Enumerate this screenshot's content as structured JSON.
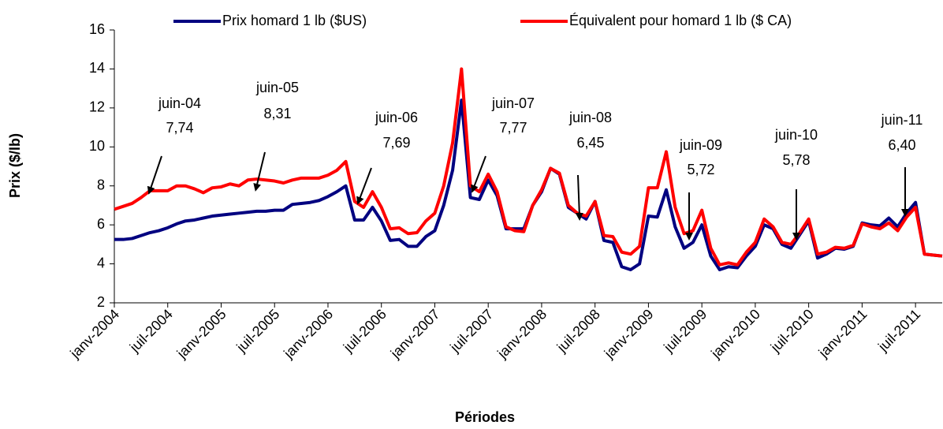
{
  "chart_data": {
    "type": "line",
    "xlabel": "Périodes",
    "ylabel": "Prix ($/lb)",
    "categories": [
      "janv-2004",
      null,
      null,
      null,
      null,
      null,
      "juil-2004",
      null,
      null,
      null,
      null,
      null,
      "janv-2005",
      null,
      null,
      null,
      null,
      null,
      "juil-2005",
      null,
      null,
      null,
      null,
      null,
      "janv-2006",
      null,
      null,
      null,
      null,
      null,
      "juil-2006",
      null,
      null,
      null,
      null,
      null,
      "janv-2007",
      null,
      null,
      null,
      null,
      null,
      "juil-2007",
      null,
      null,
      null,
      null,
      null,
      "janv-2008",
      null,
      null,
      null,
      null,
      null,
      "juil-2008",
      null,
      null,
      null,
      null,
      null,
      "janv-2009",
      null,
      null,
      null,
      null,
      null,
      "juil-2009",
      null,
      null,
      null,
      null,
      null,
      "janv-2010",
      null,
      null,
      null,
      null,
      null,
      "juil-2010",
      null,
      null,
      null,
      null,
      null,
      "janv-2011",
      null,
      null,
      null,
      null,
      null,
      "juil-2011",
      null,
      null,
      null
    ],
    "series": [
      {
        "name": "Prix homard 1 lb ($US)",
        "color": "#000080",
        "values": [
          5.25,
          5.25,
          5.3,
          5.45,
          5.6,
          5.7,
          5.85,
          6.05,
          6.2,
          6.25,
          6.35,
          6.45,
          6.5,
          6.55,
          6.6,
          6.65,
          6.7,
          6.7,
          6.75,
          6.75,
          7.05,
          7.1,
          7.15,
          7.25,
          7.45,
          7.7,
          8.0,
          6.25,
          6.25,
          6.9,
          6.2,
          5.2,
          5.25,
          4.9,
          4.9,
          5.4,
          5.7,
          7.0,
          8.8,
          12.4,
          7.4,
          7.3,
          8.3,
          7.5,
          5.8,
          5.8,
          5.8,
          7.0,
          7.7,
          8.9,
          8.6,
          6.9,
          6.6,
          6.3,
          7.2,
          5.2,
          5.1,
          3.85,
          3.7,
          4.0,
          6.45,
          6.4,
          7.8,
          5.9,
          4.8,
          5.1,
          6.0,
          4.4,
          3.7,
          3.85,
          3.8,
          4.4,
          4.9,
          6.0,
          5.8,
          5.0,
          4.8,
          5.5,
          6.2,
          4.3,
          4.5,
          4.8,
          4.75,
          4.9,
          6.1,
          6.0,
          5.95,
          6.35,
          5.9,
          6.6,
          7.15,
          4.5,
          4.45,
          4.4
        ]
      },
      {
        "name": "Équivalent pour homard 1 lb ($ CA)",
        "color": "#ff0000",
        "values": [
          6.8,
          6.95,
          7.1,
          7.4,
          7.75,
          7.75,
          7.75,
          8.0,
          8.0,
          7.85,
          7.65,
          7.9,
          7.95,
          8.1,
          8.0,
          8.3,
          8.35,
          8.3,
          8.25,
          8.15,
          8.3,
          8.4,
          8.4,
          8.4,
          8.55,
          8.8,
          9.25,
          7.2,
          6.9,
          7.7,
          6.9,
          5.8,
          5.85,
          5.55,
          5.6,
          6.2,
          6.6,
          8.0,
          10.2,
          14.0,
          8.0,
          7.7,
          8.6,
          7.7,
          5.9,
          5.7,
          5.65,
          7.0,
          7.8,
          8.9,
          8.65,
          7.0,
          6.6,
          6.45,
          7.2,
          5.45,
          5.4,
          4.6,
          4.5,
          4.9,
          7.9,
          7.9,
          9.75,
          6.9,
          5.55,
          5.7,
          6.75,
          4.8,
          3.95,
          4.05,
          3.95,
          4.6,
          5.1,
          6.3,
          5.9,
          5.1,
          5.0,
          5.6,
          6.3,
          4.5,
          4.6,
          4.85,
          4.8,
          4.95,
          6.05,
          5.9,
          5.8,
          6.1,
          5.7,
          6.4,
          6.9,
          4.5,
          4.45,
          4.4
        ]
      }
    ],
    "ylim": [
      2,
      16
    ],
    "yticks": [
      2,
      4,
      6,
      8,
      10,
      12,
      14,
      16
    ],
    "legend": "top",
    "annotations": [
      {
        "label": "juin-04",
        "value": "7,74"
      },
      {
        "label": "juin-05",
        "value": "8,31"
      },
      {
        "label": "juin-06",
        "value": "7,69"
      },
      {
        "label": "juin-07",
        "value": "7,77"
      },
      {
        "label": "juin-08",
        "value": "6,45"
      },
      {
        "label": "juin-09",
        "value": "5,72"
      },
      {
        "label": "juin-10",
        "value": "5,78"
      },
      {
        "label": "juin-11",
        "value": "6,40"
      }
    ]
  }
}
